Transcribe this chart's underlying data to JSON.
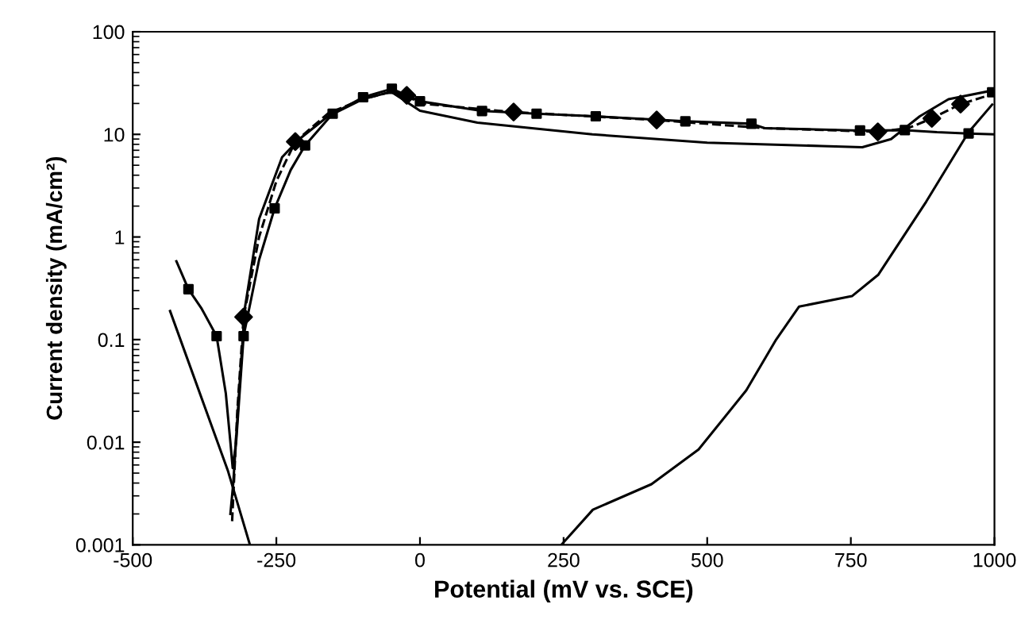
{
  "chart_data": {
    "type": "line",
    "xlabel": "Potential (mV vs. SCE)",
    "ylabel": "Current density (mA/cm²)",
    "log": "y",
    "xlim": [
      -500,
      1000
    ],
    "xticks": [
      -500,
      -250,
      0,
      250,
      500,
      750,
      1000
    ],
    "ylim": [
      0.001,
      100
    ],
    "yticks": [
      {
        "value": 0.001,
        "label": "0.001"
      },
      {
        "value": 0.01,
        "label": "0.01"
      },
      {
        "value": 0.1,
        "label": "0.1"
      },
      {
        "value": 1,
        "label": "1"
      },
      {
        "value": 10,
        "label": "10"
      },
      {
        "value": 100,
        "label": "100"
      }
    ],
    "grid": false,
    "series": [
      {
        "type": "line",
        "color": "#000000",
        "line_style": "solid",
        "marker": "none",
        "x": [
          -424,
          -403,
          -380,
          -354,
          -338,
          -330,
          -326,
          -320,
          -307,
          -280,
          -253,
          -225,
          -200,
          -152,
          -99,
          -49,
          0,
          108,
          203,
          306,
          462,
          577,
          600,
          766,
          844,
          900,
          955,
          1000
        ],
        "values": [
          0.58,
          0.31,
          0.2,
          0.108,
          0.03,
          0.01,
          0.0056,
          0.01,
          0.108,
          0.6,
          1.9,
          4.5,
          7.8,
          15.9,
          23,
          27.8,
          21,
          16.9,
          15.9,
          15,
          13.4,
          12.7,
          11.5,
          10.9,
          11,
          10.5,
          10.2,
          10
        ]
      },
      {
        "type": "scatter",
        "color": "#000000",
        "marker": "square",
        "x": [
          -403,
          -354,
          -307,
          -253,
          -200,
          -152,
          -99,
          -49,
          0,
          108,
          203,
          306,
          462,
          577,
          766,
          844,
          955,
          996
        ],
        "values": [
          0.31,
          0.108,
          0.108,
          1.9,
          7.8,
          15.9,
          23,
          27.8,
          21,
          16.9,
          15.9,
          15,
          13.4,
          12.7,
          10.9,
          11,
          10.2,
          25.7
        ]
      },
      {
        "type": "line",
        "color": "#000000",
        "line_style": "dashed",
        "marker": "none",
        "x": [
          -327,
          -318,
          -307,
          -280,
          -250,
          -217,
          -160,
          -100,
          -50,
          -23,
          0,
          163,
          412,
          600,
          797,
          850,
          891,
          941,
          1000
        ],
        "values": [
          0.0017,
          0.02,
          0.166,
          1,
          3.5,
          8.5,
          16,
          22,
          26,
          24,
          20,
          16.5,
          13.8,
          11.5,
          10.6,
          11.5,
          14.3,
          19.7,
          25
        ]
      },
      {
        "type": "scatter",
        "color": "#000000",
        "marker": "diamond",
        "x": [
          -307,
          -217,
          -23,
          163,
          412,
          797,
          891,
          941
        ],
        "values": [
          0.166,
          8.5,
          24,
          16.5,
          13.8,
          10.6,
          14.3,
          19.7
        ]
      },
      {
        "type": "line",
        "color": "#000000",
        "line_style": "solid",
        "marker": "none",
        "x": [
          -330,
          -325,
          -315,
          -305,
          -280,
          -240,
          -210,
          -160,
          -100,
          -50,
          0,
          100,
          300,
          500,
          700,
          770,
          820,
          870,
          920,
          1000
        ],
        "values": [
          0.002,
          0.004,
          0.03,
          0.2,
          1.5,
          6,
          9,
          15,
          22,
          26,
          17,
          13,
          10,
          8.3,
          7.7,
          7.5,
          9,
          15,
          22,
          27
        ]
      },
      {
        "type": "line",
        "color": "#000000",
        "line_style": "solid",
        "marker": "none",
        "x": [
          -435,
          -334,
          -296
        ],
        "values": [
          0.19,
          0.0052,
          0.001
        ]
      },
      {
        "type": "line",
        "color": "#000000",
        "line_style": "solid",
        "marker": "none",
        "x": [
          246,
          301,
          403,
          485,
          568,
          620,
          660,
          752,
          798,
          881,
          955,
          996
        ],
        "values": [
          0.001,
          0.0022,
          0.0039,
          0.0085,
          0.032,
          0.1,
          0.21,
          0.265,
          0.43,
          2.2,
          10.5,
          19.5
        ]
      }
    ]
  }
}
